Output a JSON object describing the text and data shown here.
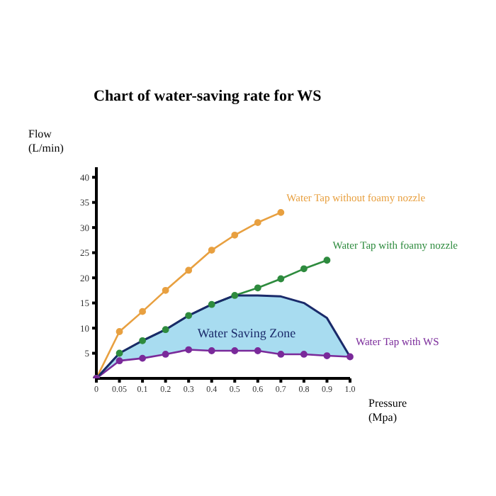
{
  "chart_data": {
    "type": "line",
    "title": "Chart of water-saving rate for WS",
    "xlabel": "Pressure (Mpa)",
    "ylabel": "Flow (L/min)",
    "categories": [
      "0",
      "0.05",
      "0.1",
      "0.2",
      "0.3",
      "0.4",
      "0.5",
      "0.6",
      "0.7",
      "0.8",
      "0.9",
      "1.0"
    ],
    "series": [
      {
        "name": "Water Tap without foamy nozzle",
        "color": "#e8a040",
        "values": [
          0,
          9.3,
          13.3,
          17.5,
          21.5,
          25.5,
          28.5,
          31,
          33,
          null,
          null,
          null
        ]
      },
      {
        "name": "Water Tap with foamy nozzle",
        "color": "#2e8b3e",
        "values": [
          0,
          5,
          7.5,
          9.7,
          12.5,
          14.7,
          16.5,
          18,
          19.8,
          21.8,
          23.5,
          null
        ]
      },
      {
        "name": "Water Tap with WS",
        "color": "#7a2a9a",
        "values": [
          0,
          3.5,
          4,
          4.8,
          5.7,
          5.5,
          5.5,
          5.5,
          4.8,
          4.8,
          4.5,
          4.3
        ],
        "lower": [
          0,
          3.5,
          4,
          4.8,
          5.7,
          5.5,
          5.5,
          5.5,
          4.8,
          4.8,
          4.5,
          4.3
        ],
        "upper": [
          0,
          5,
          7.5,
          9.7,
          12.5,
          14.7,
          16.5,
          16.5,
          16.3,
          15,
          12,
          4.3
        ]
      },
      {
        "color": "#1a2a6a",
        "marker": "none",
        "values": [
          0,
          5,
          7.5,
          9.7,
          12.5,
          14.7,
          16.5,
          16.5,
          16.3,
          15,
          12,
          4.3
        ]
      }
    ],
    "annotations": [
      "Water Saving Zone"
    ],
    "ylim": [
      0,
      42
    ],
    "yticks": [
      5,
      10,
      15,
      20,
      25,
      30,
      35,
      40
    ],
    "marker": "circle",
    "line_style": "solid"
  }
}
